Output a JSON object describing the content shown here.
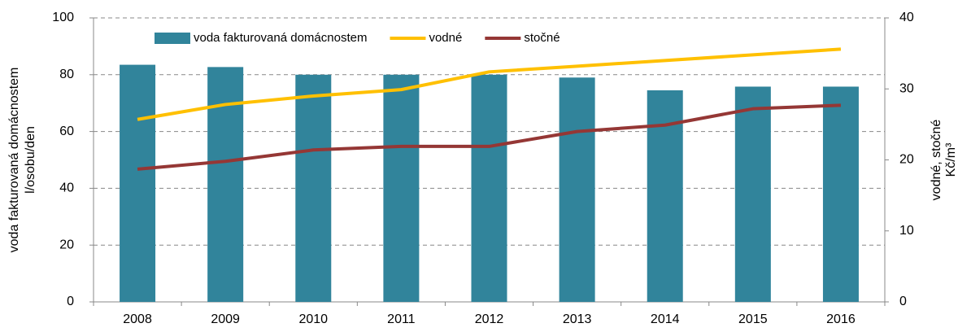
{
  "chart_data": {
    "type": "bar-line",
    "categories": [
      "2008",
      "2009",
      "2010",
      "2011",
      "2012",
      "2013",
      "2014",
      "2015",
      "2016"
    ],
    "series": [
      {
        "name": "voda fakturovaná domácnostem",
        "type": "bar",
        "color": "#31849b",
        "values": [
          83.5,
          82.7,
          80,
          80,
          80,
          79,
          74.5,
          75.8,
          75.8
        ]
      },
      {
        "name": "vodné",
        "type": "line",
        "axis": "y2",
        "color": "#ffc000",
        "values": [
          25.7,
          27.8,
          29.0,
          29.9,
          32.4,
          33.2,
          34.0,
          34.8,
          35.6
        ]
      },
      {
        "name": "stočné",
        "type": "line",
        "axis": "y2",
        "color": "#953735",
        "values": [
          18.7,
          19.8,
          21.4,
          21.9,
          21.9,
          24.0,
          24.9,
          27.2,
          27.7
        ]
      }
    ],
    "ylabel": [
      "voda fakturovaná domácnostem",
      "l/osobu/den"
    ],
    "y2label": [
      "vodné, stočné",
      "Kč/m³"
    ],
    "ylim": [
      0,
      100
    ],
    "yticks": [
      0,
      20,
      40,
      60,
      80,
      100
    ],
    "y2lim": [
      0,
      40
    ],
    "y2ticks": [
      0,
      10,
      20,
      30,
      40
    ],
    "grid": true,
    "legend": "top"
  }
}
